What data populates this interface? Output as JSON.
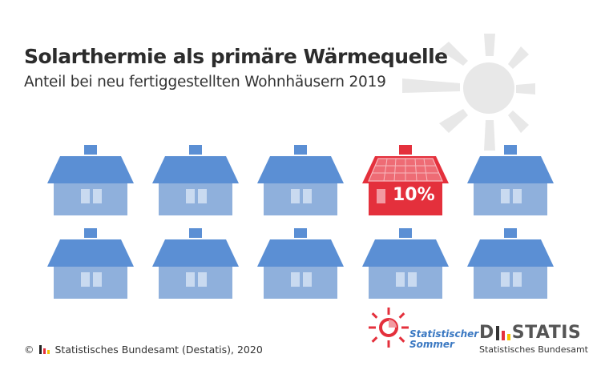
{
  "title": "Solarthermie als primäre Wärmequelle",
  "subtitle": "Anteil bei neu fertiggestellten Wohnhäusern 2019",
  "highlight": {
    "value": "10%",
    "color": "#e4303c"
  },
  "houses": {
    "total": 10,
    "solar_count": 1,
    "house_color": "#8fb0dc",
    "roof_color": "#5b8fd4"
  },
  "credit": {
    "copyright": "©",
    "text": "Statistisches Bundesamt (Destatis), 2020"
  },
  "summer_logo": {
    "line1": "Statistischer",
    "line2": "Sommer"
  },
  "destatis_logo": {
    "word_start": "D",
    "word_end": "STATIS",
    "subtitle": "Statistisches Bundesamt"
  }
}
